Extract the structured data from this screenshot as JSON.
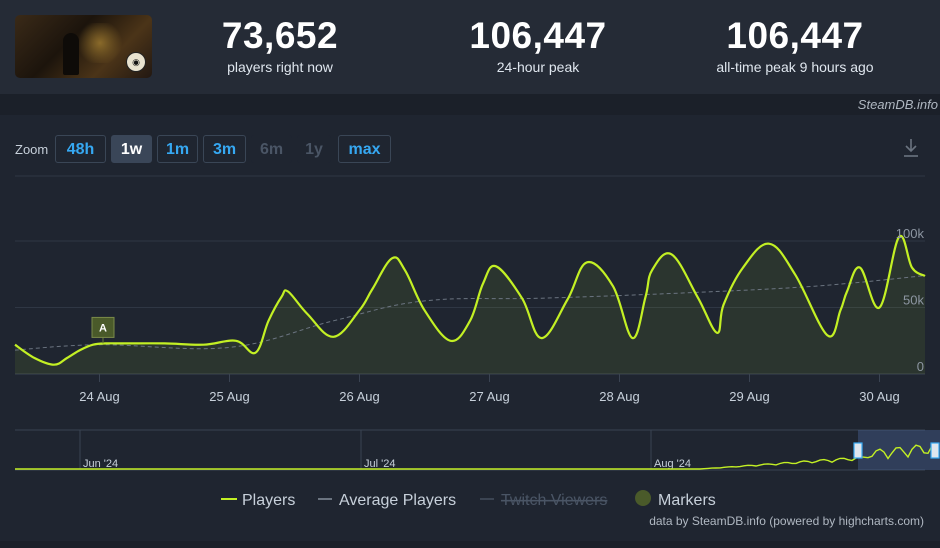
{
  "header": {
    "stats": [
      {
        "value": "73,652",
        "label": "players right now"
      },
      {
        "value": "106,447",
        "label": "24-hour peak"
      },
      {
        "value": "106,447",
        "label": "all-time peak 9 hours ago"
      }
    ],
    "credit": "SteamDB.info"
  },
  "toolbar": {
    "zoom_label": "Zoom",
    "buttons": [
      "48h",
      "1w",
      "1m",
      "3m",
      "6m",
      "1y",
      "max"
    ],
    "active": "1w",
    "disabled": [
      "6m",
      "1y"
    ]
  },
  "colors": {
    "players": "#c3f024",
    "average": "#6b7480",
    "twitch": "#3b4452",
    "marker": "#4a5a2a"
  },
  "footer": "data by SteamDB.info (powered by highcharts.com)",
  "chart_data": {
    "type": "line",
    "x_tick_labels": [
      "24 Aug",
      "25 Aug",
      "26 Aug",
      "27 Aug",
      "28 Aug",
      "29 Aug",
      "30 Aug"
    ],
    "y_tick_labels": [
      "0",
      "50k",
      "100k"
    ],
    "ylim": [
      0,
      100000
    ],
    "x_unit": "days since 23 Aug 00:00",
    "xlim": [
      0.35,
      7.35
    ],
    "series": [
      {
        "name": "Players",
        "x": [
          0.35,
          0.5,
          0.65,
          0.75,
          0.85,
          0.95,
          1.05,
          1.2,
          1.5,
          1.8,
          2.05,
          2.2,
          2.3,
          2.4,
          2.45,
          2.6,
          2.8,
          3.0,
          3.1,
          3.25,
          3.35,
          3.5,
          3.7,
          3.85,
          3.95,
          4.05,
          4.25,
          4.4,
          4.6,
          4.75,
          4.95,
          5.1,
          5.2,
          5.25,
          5.4,
          5.6,
          5.75,
          5.8,
          5.95,
          6.15,
          6.35,
          6.6,
          6.7,
          6.75,
          6.85,
          7.0,
          7.15,
          7.25,
          7.35
        ],
        "y": [
          22000,
          12000,
          7000,
          12000,
          18000,
          22000,
          23000,
          23000,
          23000,
          22000,
          25000,
          16000,
          40000,
          58000,
          62000,
          45000,
          28000,
          48000,
          64000,
          87000,
          78000,
          48000,
          25000,
          40000,
          68000,
          81000,
          57000,
          27000,
          56000,
          84000,
          66000,
          27000,
          58000,
          78000,
          90000,
          58000,
          31000,
          52000,
          80000,
          98000,
          75000,
          29000,
          48000,
          62000,
          80000,
          50000,
          103000,
          80000,
          73652
        ]
      },
      {
        "name": "Average Players",
        "x": [
          0.35,
          1.0,
          2.0,
          2.8,
          3.5,
          4.4,
          5.5,
          6.5,
          7.35
        ],
        "y": [
          18000,
          22000,
          20000,
          40000,
          55000,
          57000,
          61000,
          66000,
          74000
        ]
      },
      {
        "name": "Twitch Viewers",
        "x": [],
        "y": [],
        "hidden": true
      }
    ],
    "markers": [
      {
        "label": "A",
        "x": 0.95
      }
    ],
    "navigator_labels": [
      "Jun '24",
      "Jul '24",
      "Aug '24"
    ],
    "legend": [
      "Players",
      "Average Players",
      "Twitch Viewers",
      "Markers"
    ],
    "grid": true,
    "legend_position": "bottom"
  }
}
